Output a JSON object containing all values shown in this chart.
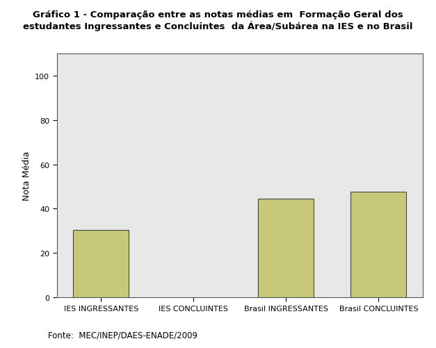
{
  "title": "Gráfico 1 - Comparação entre as notas médias em  Formação Geral dos\nestudantes Ingressantes e Concluintes  da Área/Subárea na IES e no Brasil",
  "categories": [
    "IES INGRESSANTES",
    "IES CONCLUINTES",
    "Brasil INGRESSANTES",
    "Brasil CONCLUINTES"
  ],
  "values": [
    30.3,
    0.0,
    44.5,
    47.5
  ],
  "bar_color": "#C8C87A",
  "bar_edgecolor": "#444444",
  "ylabel": "Nota Média",
  "ylim": [
    0,
    110
  ],
  "yticks": [
    0,
    20,
    40,
    60,
    80,
    100
  ],
  "plot_bg": "#E8E8E8",
  "fig_bg": "#FFFFFF",
  "source_text": "Fonte:  MEC/INEP/DAES-ENADE/2009",
  "title_fontsize": 9.5,
  "ylabel_fontsize": 9,
  "tick_fontsize": 8,
  "source_fontsize": 8.5,
  "bar_width": 0.6
}
